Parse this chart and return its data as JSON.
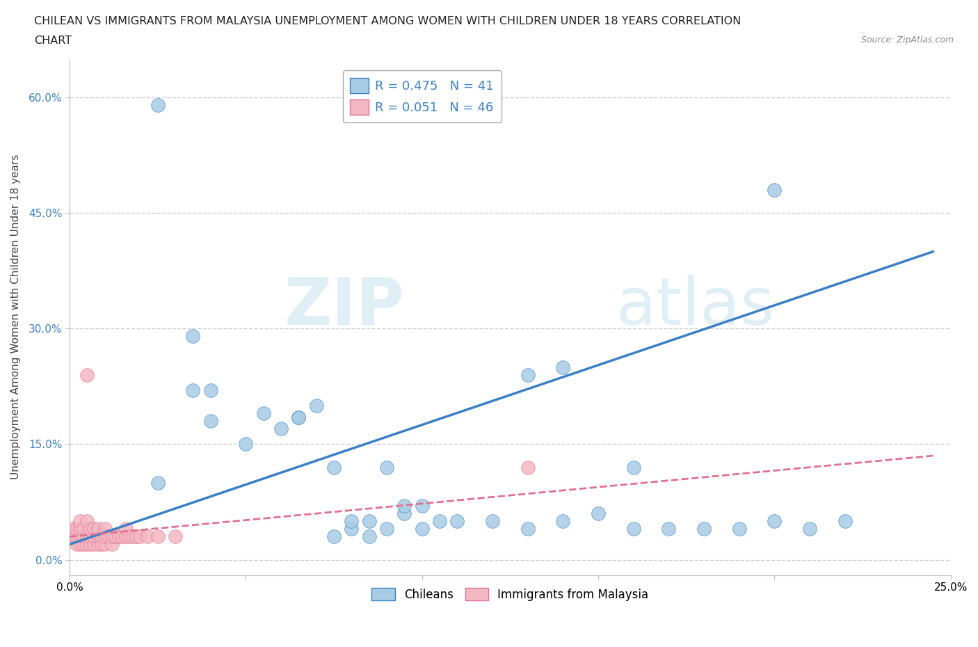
{
  "title_line1": "CHILEAN VS IMMIGRANTS FROM MALAYSIA UNEMPLOYMENT AMONG WOMEN WITH CHILDREN UNDER 18 YEARS CORRELATION",
  "title_line2": "CHART",
  "source": "Source: ZipAtlas.com",
  "ylabel": "Unemployment Among Women with Children Under 18 years",
  "xmin": 0.0,
  "xmax": 0.25,
  "ymin": -0.02,
  "ymax": 0.65,
  "yticks": [
    0.0,
    0.15,
    0.3,
    0.45,
    0.6
  ],
  "ytick_labels": [
    "0.0%",
    "15.0%",
    "30.0%",
    "45.0%",
    "60.0%"
  ],
  "xtick_positions": [
    0.0,
    0.05,
    0.1,
    0.15,
    0.2,
    0.25
  ],
  "xtick_labels": [
    "0.0%",
    "",
    "",
    "",
    "",
    "25.0%"
  ],
  "chilean_color": "#a8cce4",
  "immigrant_color": "#f4b8c4",
  "chilean_line_color": "#3b7fc4",
  "immigrant_line_color": "#e07090",
  "R_chilean": 0.475,
  "N_chilean": 41,
  "R_immigrant": 0.051,
  "N_immigrant": 46,
  "watermark_zip": "ZIP",
  "watermark_atlas": "atlas",
  "background_color": "#ffffff",
  "grid_color": "#cccccc",
  "chilean_label": "Chileans",
  "immigrant_label": "Immigrants from Malaysia",
  "ch_line_x0": 0.0,
  "ch_line_y0": 0.02,
  "ch_line_x1": 0.245,
  "ch_line_y1": 0.4,
  "im_line_x0": 0.0,
  "im_line_y0": 0.03,
  "im_line_x1": 0.245,
  "im_line_y1": 0.135,
  "chilean_scatter_x": [
    0.025,
    0.035,
    0.035,
    0.04,
    0.04,
    0.05,
    0.055,
    0.06,
    0.065,
    0.065,
    0.07,
    0.075,
    0.075,
    0.08,
    0.08,
    0.085,
    0.085,
    0.09,
    0.09,
    0.095,
    0.095,
    0.1,
    0.1,
    0.105,
    0.11,
    0.12,
    0.13,
    0.14,
    0.15,
    0.16,
    0.17,
    0.18,
    0.19,
    0.2,
    0.21,
    0.22,
    0.13,
    0.14,
    0.16,
    0.2,
    0.025
  ],
  "chilean_scatter_y": [
    0.59,
    0.29,
    0.22,
    0.18,
    0.22,
    0.15,
    0.19,
    0.17,
    0.185,
    0.185,
    0.2,
    0.03,
    0.12,
    0.04,
    0.05,
    0.03,
    0.05,
    0.12,
    0.04,
    0.06,
    0.07,
    0.04,
    0.07,
    0.05,
    0.05,
    0.05,
    0.04,
    0.05,
    0.06,
    0.04,
    0.04,
    0.04,
    0.04,
    0.48,
    0.04,
    0.05,
    0.24,
    0.25,
    0.12,
    0.05,
    0.1
  ],
  "immigrant_scatter_x": [
    0.001,
    0.001,
    0.002,
    0.002,
    0.002,
    0.003,
    0.003,
    0.003,
    0.003,
    0.004,
    0.004,
    0.004,
    0.005,
    0.005,
    0.005,
    0.006,
    0.006,
    0.006,
    0.007,
    0.007,
    0.007,
    0.008,
    0.008,
    0.008,
    0.009,
    0.009,
    0.01,
    0.01,
    0.01,
    0.011,
    0.012,
    0.012,
    0.013,
    0.014,
    0.015,
    0.016,
    0.016,
    0.017,
    0.018,
    0.019,
    0.02,
    0.022,
    0.025,
    0.03,
    0.005,
    0.13
  ],
  "immigrant_scatter_y": [
    0.03,
    0.04,
    0.02,
    0.03,
    0.04,
    0.02,
    0.03,
    0.04,
    0.05,
    0.02,
    0.03,
    0.04,
    0.02,
    0.03,
    0.05,
    0.02,
    0.03,
    0.04,
    0.02,
    0.03,
    0.04,
    0.02,
    0.03,
    0.04,
    0.02,
    0.03,
    0.02,
    0.03,
    0.04,
    0.03,
    0.02,
    0.03,
    0.03,
    0.03,
    0.03,
    0.03,
    0.04,
    0.03,
    0.03,
    0.03,
    0.03,
    0.03,
    0.03,
    0.03,
    0.24,
    0.12
  ]
}
